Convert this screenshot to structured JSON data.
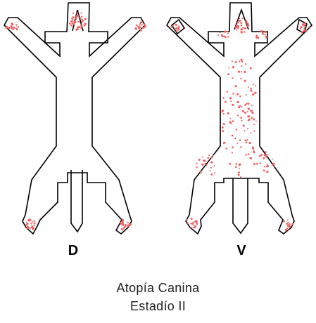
{
  "views": [
    {
      "label": "D",
      "name": "dorsal"
    },
    {
      "label": "V",
      "name": "ventral"
    }
  ],
  "caption": {
    "line1": "Atopía Canina",
    "line2": "Estadío II"
  },
  "colors": {
    "outline": "#000000",
    "lesion": "#f06060",
    "background": "#ffffff"
  }
}
